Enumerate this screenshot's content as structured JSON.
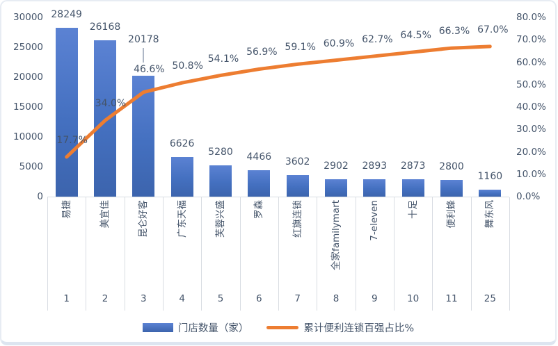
{
  "chart_data": {
    "type": "pareto-combo (bar + line)",
    "title": "",
    "categories": [
      "易捷",
      "美宜佳",
      "昆仑好客",
      "广东天福",
      "芙蓉兴盛",
      "罗森",
      "红旗连锁",
      "全家familymart",
      "7-eleven",
      "十足",
      "便利蜂",
      "舞东风"
    ],
    "rank_labels": [
      "1",
      "2",
      "3",
      "4",
      "5",
      "6",
      "7",
      "8",
      "9",
      "10",
      "11",
      "25"
    ],
    "series": [
      {
        "name": "门店数量（家）",
        "type": "bar",
        "axis": "left",
        "values": [
          28249,
          26168,
          20178,
          6626,
          5280,
          4466,
          3602,
          2902,
          2893,
          2873,
          2800,
          1160
        ]
      },
      {
        "name": "累计便利连锁百强占比%",
        "type": "line",
        "axis": "right",
        "values": [
          17.7,
          34.0,
          46.6,
          50.8,
          54.1,
          56.9,
          59.1,
          60.9,
          62.7,
          64.5,
          66.3,
          67.0
        ]
      }
    ],
    "left_axis": {
      "min": 0,
      "max": 30000,
      "step": 5000,
      "ticks": [
        "0",
        "5000",
        "10000",
        "15000",
        "20000",
        "25000",
        "30000"
      ]
    },
    "right_axis": {
      "min": 0,
      "max": 80,
      "step": 10,
      "ticks": [
        "0.0%",
        "10.0%",
        "20.0%",
        "30.0%",
        "40.0%",
        "50.0%",
        "60.0%",
        "70.0%",
        "80.0%"
      ]
    },
    "legend": [
      {
        "label": "门店数量（家）",
        "swatch": "bar"
      },
      {
        "label": "累计便利连锁百强占比%",
        "swatch": "line"
      }
    ],
    "grid": "off",
    "legend_position": "bottom-center",
    "colors": {
      "bar_top": "#5b82d3",
      "bar_bottom": "#3c64ad",
      "line": "#ED7D31",
      "text": "#44546A",
      "separator": "#d8dce2",
      "chart_border": "#dde5f0"
    }
  }
}
